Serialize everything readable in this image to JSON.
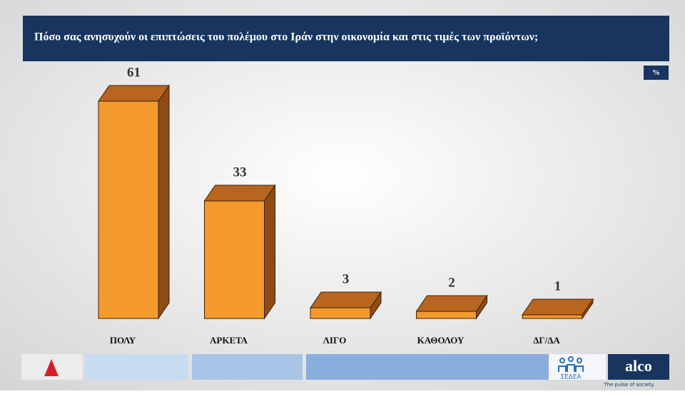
{
  "chart_data": {
    "type": "bar3d",
    "title": "Πόσο σας ανησυχούν οι επιπτώσεις του πολέμου στο Ιράν στην οικονομία και στις τιμές των προϊόντων;",
    "unit_label": "%",
    "categories": [
      "ΠΟΛΥ",
      "ΑΡΚΕΤΑ",
      "ΛΙΓΟ",
      "ΚΑΘΟΛΟΥ",
      "ΔΓ/ΔΑ"
    ],
    "values": [
      61,
      33,
      3,
      2,
      1
    ],
    "colors": {
      "front": "#f49a2c",
      "top": "#b8651f",
      "side": "#8e4c14"
    }
  },
  "footer": {
    "partner": "ΣΕΔΕΑ",
    "logo": "alco",
    "tagline": "The pulse of society."
  }
}
